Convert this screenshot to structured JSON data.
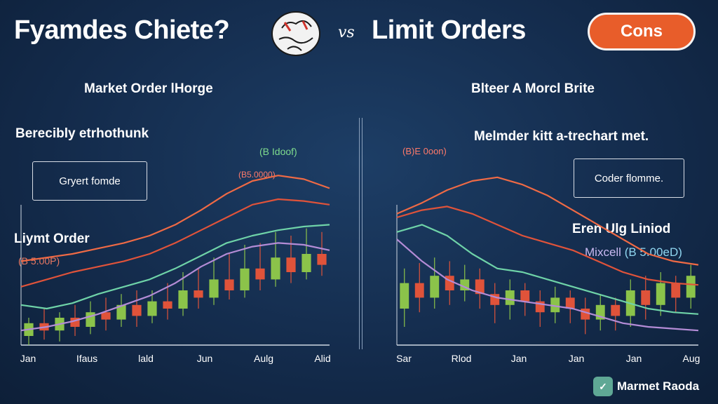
{
  "header": {
    "title_left": "Fyamdes Chiete?",
    "vs": "vs",
    "title_right": "Limit Orders",
    "cons_button": "Cons"
  },
  "left_panel": {
    "heading": "Market Order lHorge",
    "subheading": "Berecibly etrhothunk",
    "box_label": "Gryert fomde",
    "order_label": "Liymt Order",
    "price_note": "(B 5.00P)",
    "series_tag_green": "(B Idoof)",
    "series_tag_red": "(B5.0000)"
  },
  "right_panel": {
    "heading": "Blteer A Morcl Brite",
    "subheading": "Melmder kitt a-trechart met.",
    "box_label": "Coder flomme.",
    "note1": "Eren Ulg Liniod",
    "note2_a": "Mixcell",
    "note2_b": "(B 5.00eD)",
    "series_tag_red": "(B)E 0oon)"
  },
  "brand": {
    "icon": "app-logo-icon",
    "label": "Marmet Raoda"
  },
  "colors": {
    "accent": "#e85d2a",
    "up": "#8bc34a",
    "down": "#e0533a",
    "line_red": "#ef6a45",
    "line_green": "#6fd3a8",
    "line_purple": "#b48cd6"
  },
  "chart_data": [
    {
      "type": "line",
      "x_ticks": [
        "Jan",
        "Ifaus",
        "lald",
        "Jun",
        "Aulg",
        "Alid"
      ],
      "series": [
        {
          "values": [
            0.46,
            0.48,
            0.5,
            0.53,
            0.56,
            0.6,
            0.66,
            0.74,
            0.83,
            0.9,
            0.93,
            0.91,
            0.86
          ]
        },
        {
          "values": [
            0.32,
            0.36,
            0.4,
            0.43,
            0.46,
            0.5,
            0.56,
            0.63,
            0.7,
            0.77,
            0.8,
            0.79,
            0.77
          ]
        },
        {
          "values": [
            0.22,
            0.2,
            0.23,
            0.28,
            0.32,
            0.36,
            0.42,
            0.49,
            0.56,
            0.6,
            0.63,
            0.65,
            0.66
          ]
        },
        {
          "values": [
            0.08,
            0.1,
            0.13,
            0.17,
            0.22,
            0.27,
            0.34,
            0.43,
            0.5,
            0.54,
            0.56,
            0.55,
            0.52
          ]
        }
      ],
      "candles": [
        {
          "o": 0.05,
          "c": 0.12,
          "h": 0.15,
          "l": 0.0
        },
        {
          "o": 0.12,
          "c": 0.08,
          "h": 0.2,
          "l": 0.03
        },
        {
          "o": 0.08,
          "c": 0.15,
          "h": 0.18,
          "l": 0.02
        },
        {
          "o": 0.15,
          "c": 0.1,
          "h": 0.22,
          "l": 0.05
        },
        {
          "o": 0.1,
          "c": 0.18,
          "h": 0.24,
          "l": 0.06
        },
        {
          "o": 0.18,
          "c": 0.14,
          "h": 0.26,
          "l": 0.08
        },
        {
          "o": 0.14,
          "c": 0.22,
          "h": 0.28,
          "l": 0.1
        },
        {
          "o": 0.22,
          "c": 0.16,
          "h": 0.3,
          "l": 0.1
        },
        {
          "o": 0.16,
          "c": 0.24,
          "h": 0.3,
          "l": 0.12
        },
        {
          "o": 0.24,
          "c": 0.2,
          "h": 0.34,
          "l": 0.14
        },
        {
          "o": 0.2,
          "c": 0.3,
          "h": 0.4,
          "l": 0.16
        },
        {
          "o": 0.3,
          "c": 0.26,
          "h": 0.42,
          "l": 0.2
        },
        {
          "o": 0.26,
          "c": 0.36,
          "h": 0.48,
          "l": 0.22
        },
        {
          "o": 0.36,
          "c": 0.3,
          "h": 0.5,
          "l": 0.25
        },
        {
          "o": 0.3,
          "c": 0.42,
          "h": 0.55,
          "l": 0.26
        },
        {
          "o": 0.42,
          "c": 0.36,
          "h": 0.56,
          "l": 0.3
        },
        {
          "o": 0.36,
          "c": 0.48,
          "h": 0.62,
          "l": 0.32
        },
        {
          "o": 0.48,
          "c": 0.4,
          "h": 0.6,
          "l": 0.34
        },
        {
          "o": 0.4,
          "c": 0.5,
          "h": 0.64,
          "l": 0.36
        },
        {
          "o": 0.5,
          "c": 0.44,
          "h": 0.62,
          "l": 0.38
        }
      ],
      "ylim": [
        0,
        1
      ]
    },
    {
      "type": "line",
      "x_ticks": [
        "Sar",
        "Rlod",
        "Jan",
        "Jan",
        "Jan",
        "Aug"
      ],
      "series": [
        {
          "values": [
            0.72,
            0.78,
            0.85,
            0.9,
            0.92,
            0.88,
            0.82,
            0.74,
            0.66,
            0.58,
            0.5,
            0.46,
            0.44
          ]
        },
        {
          "values": [
            0.7,
            0.74,
            0.76,
            0.72,
            0.66,
            0.6,
            0.56,
            0.52,
            0.46,
            0.4,
            0.36,
            0.34,
            0.33
          ]
        },
        {
          "values": [
            0.62,
            0.66,
            0.6,
            0.5,
            0.42,
            0.4,
            0.36,
            0.32,
            0.28,
            0.24,
            0.2,
            0.18,
            0.17
          ]
        },
        {
          "values": [
            0.58,
            0.46,
            0.36,
            0.3,
            0.26,
            0.24,
            0.22,
            0.2,
            0.16,
            0.12,
            0.1,
            0.09,
            0.08
          ]
        }
      ],
      "candles": [
        {
          "o": 0.2,
          "c": 0.34,
          "h": 0.42,
          "l": 0.1
        },
        {
          "o": 0.34,
          "c": 0.26,
          "h": 0.45,
          "l": 0.18
        },
        {
          "o": 0.26,
          "c": 0.38,
          "h": 0.48,
          "l": 0.2
        },
        {
          "o": 0.38,
          "c": 0.3,
          "h": 0.46,
          "l": 0.22
        },
        {
          "o": 0.3,
          "c": 0.36,
          "h": 0.44,
          "l": 0.24
        },
        {
          "o": 0.36,
          "c": 0.28,
          "h": 0.42,
          "l": 0.2
        },
        {
          "o": 0.28,
          "c": 0.22,
          "h": 0.34,
          "l": 0.12
        },
        {
          "o": 0.22,
          "c": 0.3,
          "h": 0.36,
          "l": 0.14
        },
        {
          "o": 0.3,
          "c": 0.24,
          "h": 0.34,
          "l": 0.16
        },
        {
          "o": 0.24,
          "c": 0.18,
          "h": 0.3,
          "l": 0.1
        },
        {
          "o": 0.18,
          "c": 0.26,
          "h": 0.32,
          "l": 0.12
        },
        {
          "o": 0.26,
          "c": 0.2,
          "h": 0.3,
          "l": 0.12
        },
        {
          "o": 0.2,
          "c": 0.14,
          "h": 0.26,
          "l": 0.06
        },
        {
          "o": 0.14,
          "c": 0.22,
          "h": 0.28,
          "l": 0.08
        },
        {
          "o": 0.22,
          "c": 0.16,
          "h": 0.26,
          "l": 0.08
        },
        {
          "o": 0.16,
          "c": 0.3,
          "h": 0.36,
          "l": 0.1
        },
        {
          "o": 0.3,
          "c": 0.22,
          "h": 0.38,
          "l": 0.14
        },
        {
          "o": 0.22,
          "c": 0.34,
          "h": 0.4,
          "l": 0.16
        },
        {
          "o": 0.34,
          "c": 0.26,
          "h": 0.38,
          "l": 0.18
        },
        {
          "o": 0.26,
          "c": 0.38,
          "h": 0.44,
          "l": 0.2
        }
      ],
      "ylim": [
        0,
        1
      ]
    }
  ]
}
